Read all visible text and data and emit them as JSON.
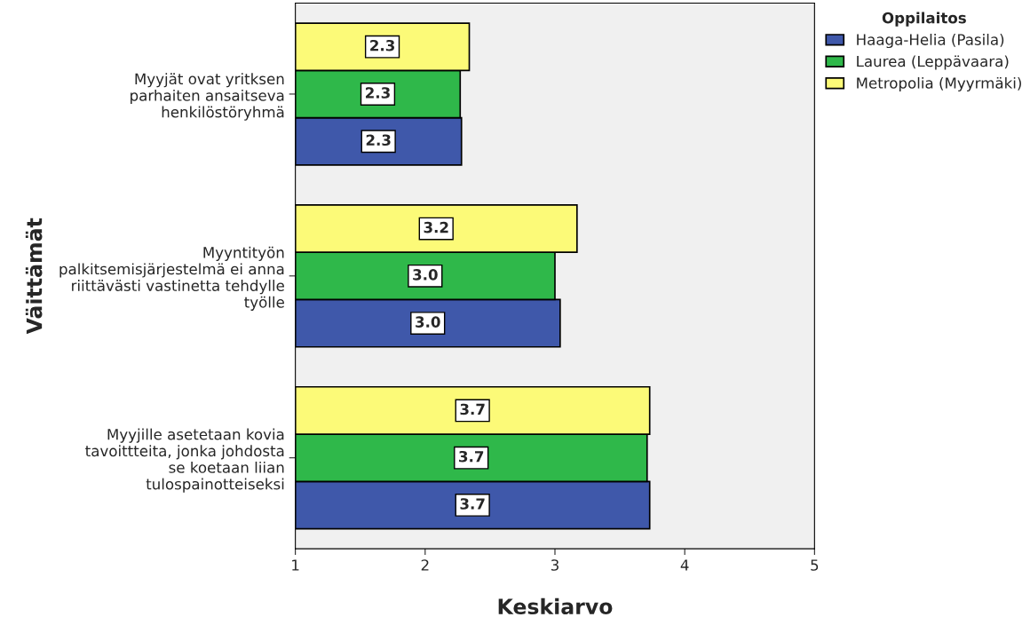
{
  "chart_data": {
    "type": "bar",
    "orientation": "horizontal",
    "categories": [
      "Myyjät ovat yritksen\nparhaiten ansaitseva\nhenkilöstöryhmä",
      "Myyntityön\npalkitsemisjärjestelmä ei anna\nriittävästi vastinetta tehdylle\ntyölle",
      "Myyjille asetetaan kovia\ntavoittteita, jonka johdosta\nse koetaan liian\ntulospainotteiseksi"
    ],
    "series": [
      {
        "name": "Haaga-Helia (Pasila)",
        "color": "#3f58aa",
        "values": [
          2.28,
          3.04,
          3.73
        ],
        "value_labels": [
          "2.3",
          "3.0",
          "3.7"
        ]
      },
      {
        "name": "Laurea (Leppävaara)",
        "color": "#2fb84a",
        "values": [
          2.27,
          3.0,
          3.71
        ],
        "value_labels": [
          "2.3",
          "3.0",
          "3.7"
        ]
      },
      {
        "name": "Metropolia (Myyrmäki)",
        "color": "#fcfa78",
        "values": [
          2.34,
          3.17,
          3.73
        ],
        "value_labels": [
          "2.3",
          "3.2",
          "3.7"
        ]
      }
    ],
    "xlim": [
      1,
      5
    ],
    "xticks": [
      1,
      2,
      3,
      4,
      5
    ],
    "xlabel": "Keskiarvo",
    "ylabel": "Väittämät",
    "legend_title": "Oppilaitos",
    "legend": "right",
    "grid": false
  }
}
